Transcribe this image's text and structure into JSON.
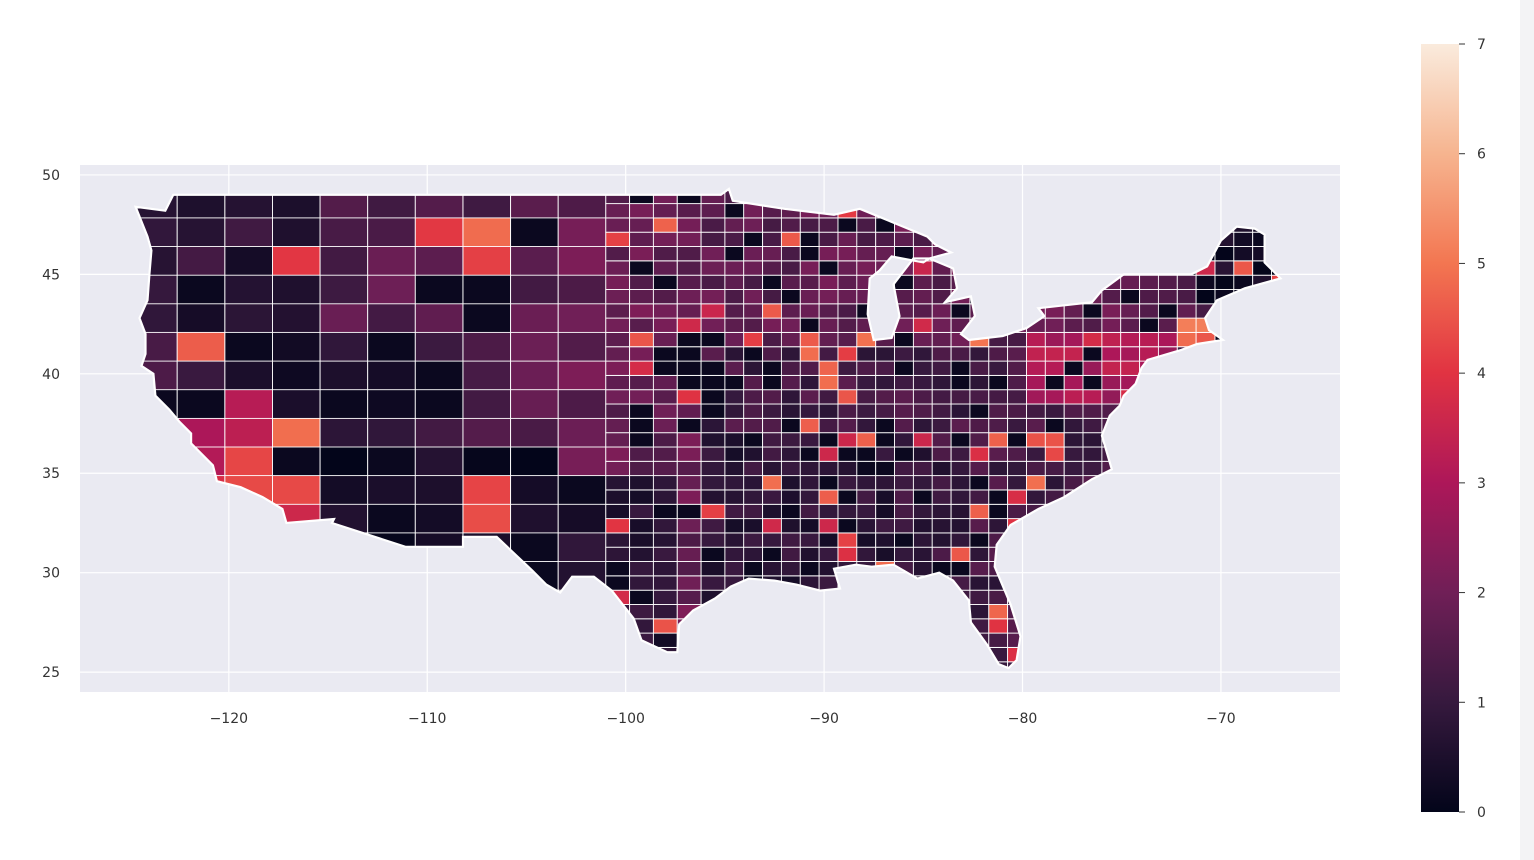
{
  "chart_data": {
    "type": "heatmap",
    "subtype": "choropleth",
    "region": "contiguous United States counties",
    "xlim": [
      -127.5,
      -64
    ],
    "ylim": [
      24,
      50.5
    ],
    "x_ticks": [
      -120,
      -110,
      -100,
      -90,
      -80,
      -70
    ],
    "x_tick_labels": [
      "−120",
      "−110",
      "−100",
      "−90",
      "−80",
      "−70"
    ],
    "y_ticks": [
      50,
      45,
      40,
      35,
      30,
      25
    ],
    "y_tick_labels": [
      "50",
      "45",
      "40",
      "35",
      "30",
      "25"
    ],
    "grid": true,
    "axes_background": "#eaeaf2",
    "border_color": "#ffffff",
    "colorbar": {
      "range": [
        0,
        7
      ],
      "ticks": [
        0,
        1,
        2,
        3,
        4,
        5,
        6,
        7
      ],
      "tick_labels": [
        "0",
        "1",
        "2",
        "3",
        "4",
        "5",
        "6",
        "7"
      ],
      "colormap": "rocket",
      "stops": [
        "#03051a",
        "#36193e",
        "#701f57",
        "#ad1759",
        "#e13342",
        "#f37651",
        "#f6b48f",
        "#faebdd"
      ],
      "placement": "right"
    },
    "xlabel": "",
    "ylabel": "",
    "title": ""
  }
}
